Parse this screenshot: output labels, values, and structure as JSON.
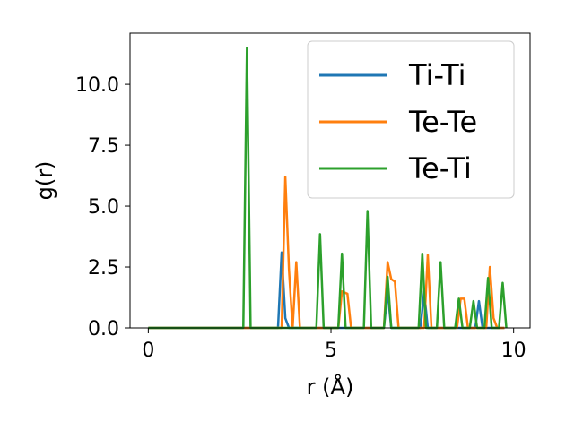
{
  "chart_data": {
    "type": "line",
    "title": "",
    "xlabel": "r (Å)",
    "ylabel": "g(r)",
    "xlim": [
      -0.5,
      10.45
    ],
    "ylim": [
      0,
      12.1
    ],
    "xticks": [
      0,
      5,
      10
    ],
    "yticks": [
      0.0,
      2.5,
      5.0,
      7.5,
      10.0
    ],
    "xtick_labels": [
      "0",
      "5",
      "10"
    ],
    "ytick_labels": [
      "0.0",
      "2.5",
      "5.0",
      "7.5",
      "10.0"
    ],
    "legend_position": "top-right",
    "series": [
      {
        "name": "Ti-Ti",
        "color": "#1f77b4",
        "x": [
          0,
          3.55,
          3.65,
          3.75,
          3.85,
          6.45,
          6.55,
          6.65,
          7.45,
          7.55,
          7.65,
          8.95,
          9.05,
          9.15,
          9.75
        ],
        "y": [
          0,
          0,
          3.1,
          0.4,
          0,
          0,
          1.5,
          0,
          0,
          1.5,
          0,
          0,
          1.1,
          0,
          0
        ]
      },
      {
        "name": "Te-Te",
        "color": "#ff7f0e",
        "x": [
          0,
          3.65,
          3.75,
          3.85,
          3.95,
          4.05,
          4.15,
          5.2,
          5.3,
          5.45,
          5.55,
          5.65,
          6.45,
          6.55,
          6.65,
          6.75,
          6.85,
          7.55,
          7.65,
          7.75,
          8.45,
          8.55,
          8.65,
          8.75,
          9.25,
          9.35,
          9.45,
          9.55,
          9.75
        ],
        "y": [
          0,
          0,
          6.2,
          2.4,
          0,
          2.7,
          0,
          0,
          1.5,
          1.4,
          0,
          0,
          0,
          2.7,
          2.0,
          1.9,
          0,
          0,
          3.0,
          0,
          0,
          1.2,
          1.2,
          0,
          0,
          2.5,
          0.4,
          0,
          0
        ]
      },
      {
        "name": "Te-Ti",
        "color": "#2ca02c",
        "x": [
          0,
          2.6,
          2.7,
          2.8,
          4.6,
          4.7,
          4.8,
          5.2,
          5.3,
          5.4,
          5.9,
          6.0,
          6.1,
          6.45,
          6.55,
          6.65,
          7.4,
          7.5,
          7.6,
          7.9,
          8.0,
          8.1,
          8.4,
          8.5,
          8.6,
          8.8,
          8.9,
          9.0,
          9.2,
          9.3,
          9.4,
          9.6,
          9.7,
          9.8
        ],
        "y": [
          0,
          0,
          11.5,
          0,
          0,
          3.85,
          0,
          0,
          3.05,
          0,
          0,
          4.8,
          0,
          0,
          2.1,
          0,
          0,
          3.05,
          0,
          0,
          2.7,
          0,
          0,
          1.2,
          0,
          0,
          1.1,
          0,
          0,
          2.05,
          0,
          0,
          1.85,
          0
        ]
      }
    ]
  }
}
